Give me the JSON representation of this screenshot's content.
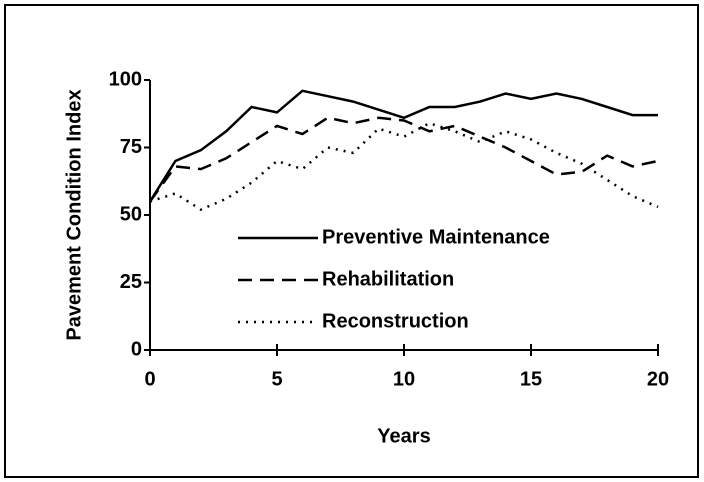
{
  "chart_data": {
    "type": "line",
    "xlabel": "Years",
    "ylabel": "Pavement Condition Index",
    "x": [
      0,
      1,
      2,
      3,
      4,
      5,
      6,
      7,
      8,
      9,
      10,
      11,
      12,
      13,
      14,
      15,
      16,
      17,
      18,
      19,
      20
    ],
    "series": [
      {
        "name": "Preventive Maintenance",
        "color": "#000000",
        "dash": "solid",
        "values": [
          55,
          70,
          74,
          81,
          90,
          88,
          96,
          94,
          92,
          89,
          86,
          90,
          90,
          92,
          95,
          93,
          95,
          93,
          90,
          87,
          87
        ]
      },
      {
        "name": "Rehabilitation",
        "color": "#000000",
        "dash": "dashed",
        "values": [
          55,
          68,
          67,
          71,
          77,
          83,
          80,
          86,
          84,
          86,
          85,
          81,
          83,
          79,
          75,
          70,
          65,
          66,
          72,
          68,
          70
        ]
      },
      {
        "name": "Reconstruction",
        "color": "#000000",
        "dash": "dotted",
        "values": [
          55,
          58,
          52,
          56,
          62,
          70,
          67,
          75,
          73,
          82,
          79,
          84,
          81,
          77,
          81,
          78,
          73,
          69,
          63,
          57,
          53
        ]
      }
    ],
    "xlim": [
      0,
      20
    ],
    "xticks": [
      0,
      5,
      10,
      15,
      20
    ],
    "ylim": [
      0,
      100
    ],
    "yticks": [
      0,
      25,
      50,
      75,
      100
    ],
    "grid": false
  }
}
